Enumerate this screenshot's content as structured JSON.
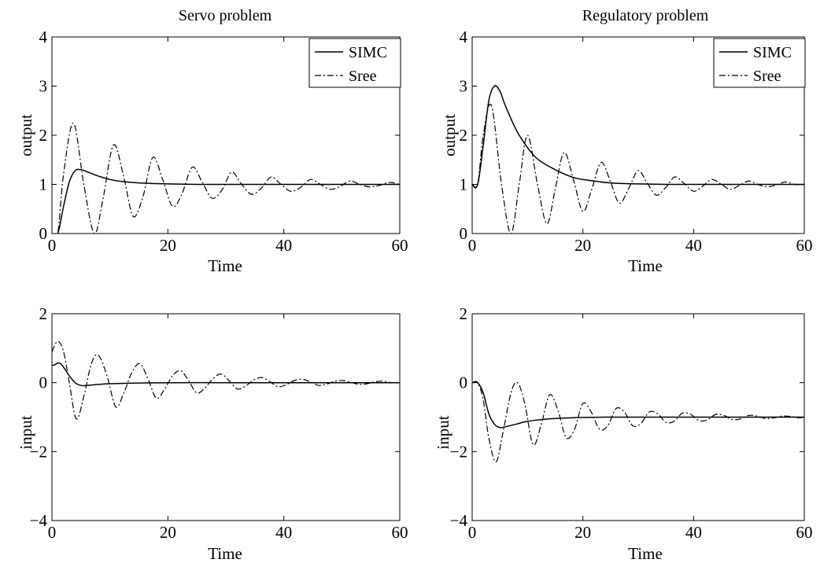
{
  "figure": {
    "panels": [
      {
        "title": "Servo problem",
        "xlabel": "Time",
        "ylabel": "output",
        "legend": [
          "SIMC",
          "Sree"
        ]
      },
      {
        "title": "Regulatory problem",
        "xlabel": "Time",
        "ylabel": "output",
        "legend": [
          "SIMC",
          "Sree"
        ]
      },
      {
        "title": "",
        "xlabel": "Time",
        "ylabel": "input",
        "legend": []
      },
      {
        "title": "",
        "xlabel": "Time",
        "ylabel": "input",
        "legend": []
      }
    ]
  },
  "chart_data": [
    {
      "type": "line",
      "title": "Servo problem",
      "xlabel": "Time",
      "ylabel": "output",
      "xlim": [
        0,
        60
      ],
      "ylim": [
        0,
        4
      ],
      "xticks": [
        0,
        20,
        40,
        60
      ],
      "yticks": [
        0,
        1,
        2,
        3,
        4
      ],
      "legend_position": "top-right",
      "grid": false,
      "series": [
        {
          "name": "SIMC",
          "style": "solid",
          "x": [
            0,
            1,
            2,
            3,
            4,
            5,
            6,
            8,
            10,
            12,
            15,
            20,
            25,
            30,
            40,
            50,
            60
          ],
          "y": [
            0,
            0,
            0.55,
            1.05,
            1.28,
            1.3,
            1.26,
            1.17,
            1.1,
            1.06,
            1.03,
            1.01,
            1.0,
            1.0,
            1.0,
            1.0,
            1.0
          ]
        },
        {
          "name": "Sree",
          "style": "dashdot",
          "x": [
            0,
            1,
            2,
            3.7,
            5.5,
            7.3,
            8.8,
            10.6,
            12.3,
            14.0,
            15.7,
            17.4,
            19.1,
            20.8,
            22.4,
            24.2,
            25.9,
            27.6,
            29.3,
            31.0,
            32.6,
            34.4,
            36.1,
            37.8,
            39.5,
            41.2,
            42.9,
            44.6,
            46.3,
            48.0,
            49.7,
            51.4,
            53.1,
            54.8,
            56.5,
            58.2,
            60
          ],
          "y": [
            0,
            0,
            1.2,
            2.25,
            1.0,
            0,
            0.7,
            1.8,
            1.2,
            0.35,
            0.75,
            1.55,
            1.1,
            0.55,
            0.8,
            1.35,
            1.05,
            0.72,
            0.88,
            1.25,
            1.02,
            0.8,
            0.92,
            1.15,
            1.0,
            0.86,
            0.94,
            1.1,
            1.0,
            0.9,
            0.96,
            1.07,
            1.0,
            0.95,
            0.98,
            1.04,
            1.0
          ]
        }
      ]
    },
    {
      "type": "line",
      "title": "Regulatory problem",
      "xlabel": "Time",
      "ylabel": "output",
      "xlim": [
        0,
        60
      ],
      "ylim": [
        0,
        4
      ],
      "xticks": [
        0,
        20,
        40,
        60
      ],
      "yticks": [
        0,
        1,
        2,
        3,
        4
      ],
      "legend_position": "top-right",
      "grid": false,
      "series": [
        {
          "name": "SIMC",
          "style": "solid",
          "x": [
            0,
            1,
            2,
            3,
            4,
            5,
            6,
            8,
            10,
            12,
            15,
            18,
            20,
            25,
            30,
            35,
            40,
            50,
            60
          ],
          "y": [
            1,
            1,
            1.8,
            2.7,
            3.0,
            2.9,
            2.6,
            2.1,
            1.75,
            1.5,
            1.3,
            1.15,
            1.1,
            1.03,
            1.01,
            1.0,
            1.0,
            1.0,
            1.0
          ]
        },
        {
          "name": "Sree",
          "style": "dashdot",
          "x": [
            0,
            1,
            2,
            3.5,
            5.3,
            7.0,
            8.5,
            10.0,
            11.8,
            13.5,
            15.0,
            16.6,
            18.3,
            20.0,
            21.6,
            23.3,
            25.0,
            26.6,
            28.3,
            30.0,
            31.6,
            33.3,
            35.0,
            36.6,
            38.3,
            40.0,
            41.6,
            43.3,
            45.0,
            46.6,
            48.3,
            50.0,
            51.6,
            53.3,
            55.0,
            56.6,
            58.3,
            60
          ],
          "y": [
            1,
            1,
            2.0,
            2.6,
            1.0,
            0,
            1.0,
            2.0,
            1.0,
            0.2,
            0.9,
            1.65,
            1.1,
            0.45,
            0.9,
            1.45,
            1.05,
            0.62,
            0.92,
            1.28,
            1.03,
            0.78,
            0.94,
            1.15,
            1.02,
            0.86,
            0.96,
            1.1,
            1.0,
            0.9,
            0.98,
            1.07,
            1.0,
            0.95,
            0.99,
            1.05,
            1.0,
            1.0
          ]
        }
      ]
    },
    {
      "type": "line",
      "title": "",
      "xlabel": "Time",
      "ylabel": "input",
      "xlim": [
        0,
        60
      ],
      "ylim": [
        -4,
        2
      ],
      "xticks": [
        0,
        20,
        40,
        60
      ],
      "yticks": [
        -4,
        -2,
        0,
        2
      ],
      "grid": false,
      "series": [
        {
          "name": "SIMC",
          "style": "solid",
          "x": [
            0,
            0.5,
            1,
            1.5,
            2,
            3,
            4,
            5,
            6,
            8,
            10,
            15,
            20,
            30,
            40,
            50,
            60
          ],
          "y": [
            0.5,
            0.52,
            0.57,
            0.55,
            0.45,
            0.2,
            0.0,
            -0.08,
            -0.08,
            -0.05,
            -0.03,
            -0.01,
            0,
            0,
            0,
            0,
            0
          ]
        },
        {
          "name": "Sree",
          "style": "dashdot",
          "x": [
            0,
            1,
            2,
            3,
            4.2,
            5.5,
            6.8,
            8.0,
            9.5,
            11.0,
            12.4,
            13.8,
            15.2,
            16.6,
            18.0,
            19.4,
            20.8,
            22.2,
            23.6,
            25.0,
            26.4,
            27.8,
            29.2,
            30.6,
            32.0,
            33.4,
            34.8,
            36.2,
            37.6,
            39.0,
            40.4,
            41.8,
            43.2,
            44.6,
            46.0,
            47.4,
            48.8,
            50.2,
            51.6,
            53.0,
            54.4,
            55.8,
            57.2,
            58.6,
            60
          ],
          "y": [
            0.9,
            1.2,
            0.9,
            0.0,
            -1.05,
            -0.4,
            0.55,
            0.8,
            0.2,
            -0.7,
            -0.3,
            0.3,
            0.55,
            0.1,
            -0.45,
            -0.2,
            0.2,
            0.35,
            0.05,
            -0.3,
            -0.15,
            0.12,
            0.25,
            0.05,
            -0.18,
            -0.1,
            0.08,
            0.15,
            0.03,
            -0.12,
            -0.06,
            0.06,
            0.1,
            0.02,
            -0.08,
            -0.04,
            0.04,
            0.06,
            0.01,
            -0.05,
            -0.03,
            0.03,
            0.04,
            0.0,
            0.0
          ]
        }
      ]
    },
    {
      "type": "line",
      "title": "",
      "xlabel": "Time",
      "ylabel": "input",
      "xlim": [
        0,
        60
      ],
      "ylim": [
        -4,
        2
      ],
      "xticks": [
        0,
        20,
        40,
        60
      ],
      "yticks": [
        -4,
        -2,
        0,
        2
      ],
      "grid": false,
      "series": [
        {
          "name": "SIMC",
          "style": "solid",
          "x": [
            0,
            1,
            2,
            3,
            4,
            5,
            6,
            8,
            10,
            12,
            15,
            20,
            25,
            30,
            40,
            50,
            60
          ],
          "y": [
            0,
            0,
            -0.3,
            -0.9,
            -1.2,
            -1.3,
            -1.28,
            -1.2,
            -1.12,
            -1.08,
            -1.04,
            -1.01,
            -1.0,
            -1.0,
            -1.0,
            -1.0,
            -1.0
          ]
        },
        {
          "name": "Sree",
          "style": "dashdot",
          "x": [
            0,
            1,
            2,
            3,
            4.3,
            5.5,
            7.0,
            8.2,
            9.5,
            11.0,
            12.5,
            14.0,
            15.5,
            17.0,
            18.5,
            20.0,
            21.5,
            23.0,
            24.5,
            26.0,
            27.5,
            29.0,
            30.5,
            32.0,
            33.5,
            35.0,
            36.5,
            38.0,
            39.5,
            41.0,
            42.5,
            44.0,
            45.5,
            47.0,
            48.5,
            50.0,
            51.5,
            53.0,
            54.5,
            56.0,
            57.5,
            59.0,
            60
          ],
          "y": [
            0,
            0,
            -0.5,
            -1.6,
            -2.3,
            -1.5,
            -0.3,
            0.0,
            -0.6,
            -1.8,
            -1.2,
            -0.35,
            -0.8,
            -1.6,
            -1.35,
            -0.6,
            -0.85,
            -1.35,
            -1.25,
            -0.75,
            -0.85,
            -1.25,
            -1.18,
            -0.85,
            -0.9,
            -1.15,
            -1.12,
            -0.88,
            -0.92,
            -1.1,
            -1.08,
            -0.92,
            -0.95,
            -1.07,
            -1.05,
            -0.95,
            -0.97,
            -1.04,
            -1.02,
            -0.97,
            -0.98,
            -1.02,
            -1.0
          ]
        }
      ]
    }
  ]
}
